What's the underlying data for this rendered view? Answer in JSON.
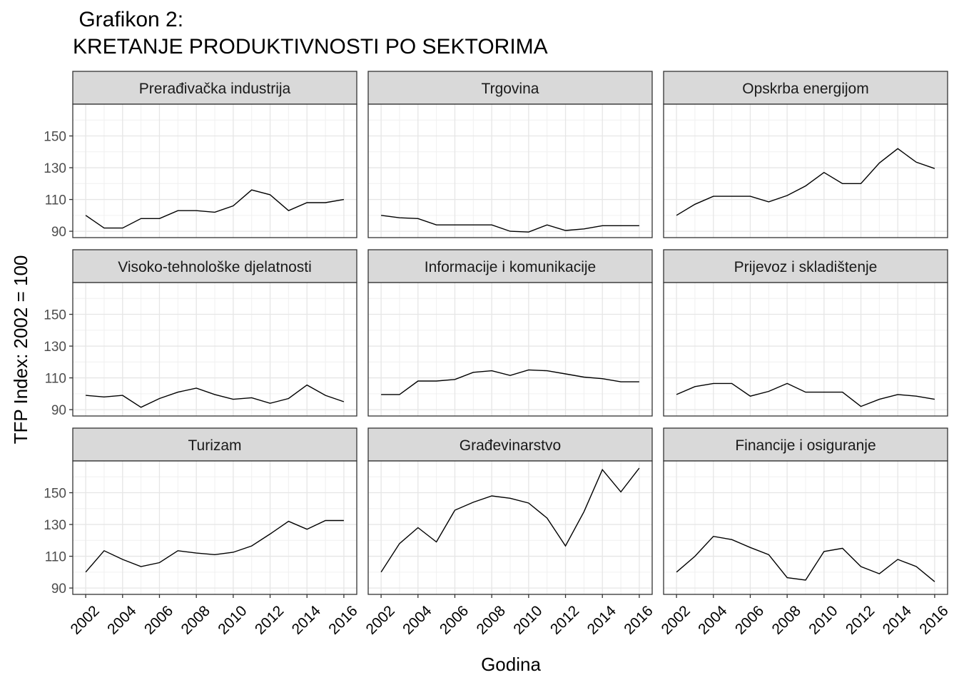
{
  "title_line1": " Grafikon 2:",
  "title_line2": "KRETANJE PRODUKTIVNOSTI PO SEKTORIMA",
  "chart_data": {
    "type": "line",
    "layout": "facet 3x3",
    "xlabel": "Godina",
    "ylabel": "TFP Index: 2002 = 100",
    "x": [
      2002,
      2003,
      2004,
      2005,
      2006,
      2007,
      2008,
      2009,
      2010,
      2011,
      2012,
      2013,
      2014,
      2015,
      2016
    ],
    "x_ticks": [
      2002,
      2004,
      2006,
      2008,
      2010,
      2012,
      2014,
      2016
    ],
    "y_ticks": [
      90,
      110,
      130,
      150
    ],
    "xlim": [
      2001.3,
      2016.7
    ],
    "ylim": [
      86,
      170
    ],
    "grid": true,
    "line_color": "#000000",
    "series": [
      {
        "name": "Prerađivačka industrija",
        "values": [
          100,
          92,
          92,
          98,
          98,
          103,
          103,
          102,
          106,
          116,
          113,
          103,
          108,
          108,
          110
        ]
      },
      {
        "name": "Trgovina",
        "values": [
          100,
          98.5,
          98,
          94,
          94,
          94,
          94,
          90,
          89.5,
          94,
          90.5,
          91.5,
          93.5,
          93.5,
          93.5
        ]
      },
      {
        "name": "Opskrba energijom",
        "values": [
          100,
          107,
          112,
          112,
          112,
          108.5,
          112.5,
          118.5,
          127,
          120,
          120,
          133,
          142,
          133.5,
          129.5
        ]
      },
      {
        "name": "Visoko-tehnološke djelatnosti",
        "values": [
          99,
          98,
          99,
          91.5,
          97,
          101,
          103.5,
          99.5,
          96.5,
          97.5,
          94,
          97,
          105.5,
          99,
          95
        ]
      },
      {
        "name": "Informacije i komunikacije",
        "values": [
          99.5,
          99.5,
          108,
          108,
          109,
          113.5,
          114.5,
          111.5,
          115,
          114.5,
          112.5,
          110.5,
          109.5,
          107.5,
          107.5
        ]
      },
      {
        "name": "Prijevoz i skladištenje",
        "values": [
          99.5,
          104.5,
          106.5,
          106.5,
          98.5,
          101.5,
          106.5,
          101,
          101,
          101,
          92,
          96.5,
          99.5,
          98.5,
          96.5
        ]
      },
      {
        "name": "Turizam",
        "values": [
          100,
          113.5,
          108,
          103.5,
          106,
          113.5,
          112,
          111,
          112.5,
          116.5,
          124,
          132,
          127,
          132.5,
          132.5
        ]
      },
      {
        "name": "Građevinarstvo",
        "values": [
          100,
          118,
          128,
          119,
          139,
          144,
          148,
          146.5,
          143.5,
          134,
          116.5,
          138,
          164.5,
          150.5,
          165.5
        ]
      },
      {
        "name": "Financije i osiguranje",
        "values": [
          100,
          110,
          122.5,
          120.5,
          115.5,
          111,
          96.5,
          95,
          113,
          115,
          103.5,
          99,
          108,
          103.5,
          94
        ]
      }
    ]
  }
}
